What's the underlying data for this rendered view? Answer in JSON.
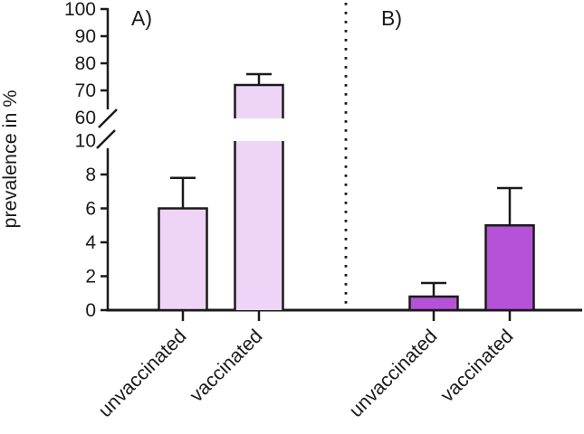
{
  "figure": {
    "ylabel": "prevalence in %",
    "panel_a_label": "A)",
    "panel_b_label": "B)"
  },
  "chart_data": {
    "type": "bar",
    "title": "",
    "xlabel": "",
    "ylabel": "prevalence in %",
    "axis": {
      "broken_y_axis": true,
      "lower_segment": {
        "range": [
          0,
          10
        ],
        "tick_values": [
          0,
          2,
          4,
          6,
          8
        ],
        "break_label": 10
      },
      "upper_segment": {
        "range": [
          60,
          100
        ],
        "tick_values": [
          70,
          80,
          90,
          100
        ],
        "break_label": 60
      },
      "grid": false
    },
    "categories": [
      "unvaccinated",
      "vaccinated"
    ],
    "panels": [
      {
        "label": "A)",
        "bar_color": "#eed5f7",
        "series": [
          {
            "category": "unvaccinated",
            "value": 6.0,
            "error_high": 7.8
          },
          {
            "category": "vaccinated",
            "value": 72.0,
            "error_high": 76.0
          }
        ]
      },
      {
        "label": "B)",
        "bar_color": "#b652d8",
        "series": [
          {
            "category": "unvaccinated",
            "value": 0.8,
            "error_high": 1.6
          },
          {
            "category": "vaccinated",
            "value": 5.0,
            "error_high": 7.2
          }
        ]
      }
    ],
    "separator": {
      "style": "dotted",
      "orientation": "vertical"
    },
    "stroke_color": "#1a1a1a"
  }
}
